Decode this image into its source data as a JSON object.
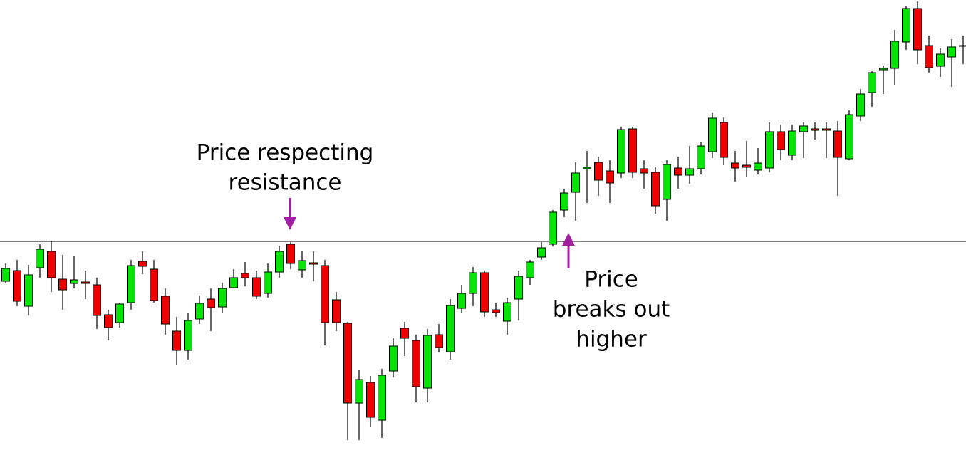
{
  "chart_data": {
    "type": "candlestick",
    "ylim": [
      0,
      660
    ],
    "up_color": "#00e600",
    "down_color": "#ee0000",
    "outline_color": "#000000",
    "resistance": 321,
    "annotations": [
      {
        "lines": [
          "Price respecting",
          "resistance"
        ]
      },
      {
        "lines": [
          "Price",
          "breaks out",
          "higher"
        ]
      }
    ],
    "open": [
      265,
      280,
      230,
      284,
      307,
      268,
      262,
      264,
      260,
      218,
      207,
      235,
      293,
      282,
      244,
      195,
      168,
      212,
      240,
      229,
      256,
      276,
      270,
      248,
      278,
      317,
      281,
      291,
      287,
      239,
      206,
      94,
      123,
      70,
      139,
      199,
      182,
      115,
      190,
      166,
      227,
      248,
      277,
      225,
      209,
      240,
      270,
      299,
      317,
      365,
      390,
      423,
      432,
      420,
      417,
      479,
      423,
      418,
      380,
      424,
      414,
      423,
      447,
      488,
      431,
      428,
      421,
      424,
      475,
      442,
      475,
      479,
      479,
      476,
      437,
      497,
      530,
      562,
      564,
      601,
      648,
      596,
      567,
      580,
      596
    ],
    "high": [
      290,
      295,
      288,
      317,
      322,
      302,
      300,
      280,
      270,
      225,
      235,
      295,
      307,
      295,
      255,
      215,
      220,
      245,
      255,
      263,
      282,
      292,
      280,
      290,
      315,
      320,
      308,
      307,
      295,
      250,
      208,
      140,
      132,
      142,
      185,
      208,
      190,
      198,
      205,
      240,
      260,
      285,
      280,
      235,
      242,
      280,
      295,
      320,
      365,
      395,
      432,
      448,
      440,
      435,
      482,
      482,
      435,
      425,
      435,
      440,
      455,
      460,
      502,
      495,
      448,
      462,
      452,
      488,
      485,
      485,
      488,
      488,
      488,
      490,
      505,
      535,
      560,
      568,
      618,
      652,
      658,
      610,
      592,
      605,
      610
    ],
    "low": [
      262,
      230,
      217,
      270,
      250,
      225,
      255,
      240,
      198,
      182,
      200,
      225,
      275,
      235,
      190,
      148,
      155,
      205,
      195,
      220,
      255,
      258,
      240,
      242,
      270,
      282,
      270,
      265,
      175,
      195,
      42,
      42,
      60,
      45,
      130,
      160,
      95,
      95,
      165,
      155,
      220,
      230,
      215,
      215,
      190,
      210,
      260,
      295,
      314,
      355,
      350,
      375,
      385,
      375,
      410,
      410,
      395,
      360,
      350,
      395,
      402,
      415,
      438,
      428,
      405,
      412,
      415,
      418,
      435,
      435,
      438,
      464,
      438,
      385,
      435,
      490,
      510,
      528,
      540,
      590,
      570,
      558,
      552,
      538,
      570
    ],
    "close": [
      283,
      237,
      274,
      310,
      270,
      253,
      267,
      262,
      217,
      200,
      233,
      287,
      286,
      238,
      205,
      168,
      210,
      234,
      228,
      255,
      270,
      270,
      244,
      278,
      307,
      290,
      294,
      289,
      207,
      207,
      94,
      127,
      74,
      133,
      174,
      185,
      117,
      189,
      172,
      231,
      248,
      277,
      222,
      221,
      235,
      272,
      292,
      312,
      362,
      389,
      417,
      425,
      407,
      403,
      478,
      418,
      417,
      371,
      429,
      414,
      423,
      455,
      494,
      439,
      424,
      425,
      431,
      475,
      450,
      476,
      483,
      477,
      477,
      439,
      499,
      528,
      558,
      564,
      602,
      648,
      590,
      565,
      584,
      594,
      596
    ]
  }
}
